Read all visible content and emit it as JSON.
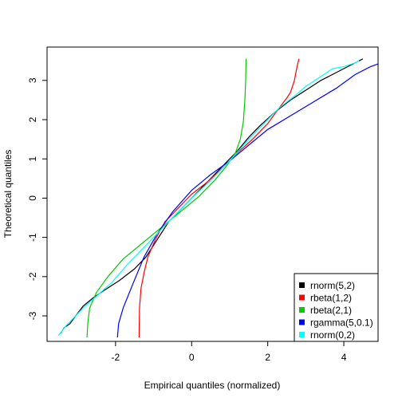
{
  "chart_data": {
    "type": "line",
    "title": "",
    "xlabel": "Empirical quantiles (normalized)",
    "ylabel": "Theoretical quantiles",
    "xlim": [
      -3.8,
      4.9
    ],
    "ylim": [
      -3.65,
      3.85
    ],
    "xticks": [
      -2,
      0,
      2,
      4
    ],
    "yticks": [
      -3,
      -2,
      -1,
      0,
      1,
      2,
      3
    ],
    "grid": false,
    "legend_position": "bottom-right",
    "series": [
      {
        "name": "rnorm(5,2)",
        "color": "#000000",
        "points": [
          [
            -3.45,
            -3.45
          ],
          [
            -3.35,
            -3.3
          ],
          [
            -3.2,
            -3.2
          ],
          [
            -3.05,
            -3.0
          ],
          [
            -2.85,
            -2.75
          ],
          [
            -2.6,
            -2.55
          ],
          [
            -2.3,
            -2.35
          ],
          [
            -1.9,
            -2.1
          ],
          [
            -1.5,
            -1.8
          ],
          [
            -1.2,
            -1.5
          ],
          [
            -0.9,
            -1.05
          ],
          [
            -0.6,
            -0.6
          ],
          [
            -0.3,
            -0.3
          ],
          [
            0.0,
            0.0
          ],
          [
            0.3,
            0.3
          ],
          [
            0.6,
            0.6
          ],
          [
            0.9,
            0.9
          ],
          [
            1.2,
            1.2
          ],
          [
            1.5,
            1.55
          ],
          [
            1.8,
            1.85
          ],
          [
            2.2,
            2.2
          ],
          [
            2.6,
            2.5
          ],
          [
            3.0,
            2.75
          ],
          [
            3.4,
            3.0
          ],
          [
            3.8,
            3.2
          ],
          [
            4.2,
            3.4
          ],
          [
            4.5,
            3.55
          ]
        ]
      },
      {
        "name": "rbeta(1,2)",
        "color": "#ff0000",
        "points": [
          [
            -1.38,
            -3.55
          ],
          [
            -1.37,
            -2.8
          ],
          [
            -1.33,
            -2.3
          ],
          [
            -1.25,
            -1.9
          ],
          [
            -1.15,
            -1.5
          ],
          [
            -0.95,
            -1.05
          ],
          [
            -0.7,
            -0.6
          ],
          [
            -0.4,
            -0.3
          ],
          [
            0.0,
            0.1
          ],
          [
            0.4,
            0.4
          ],
          [
            0.8,
            0.75
          ],
          [
            1.2,
            1.15
          ],
          [
            1.6,
            1.5
          ],
          [
            2.0,
            1.9
          ],
          [
            2.3,
            2.3
          ],
          [
            2.5,
            2.55
          ],
          [
            2.6,
            2.7
          ],
          [
            2.7,
            3.0
          ],
          [
            2.77,
            3.35
          ],
          [
            2.82,
            3.55
          ]
        ]
      },
      {
        "name": "rbeta(2,1)",
        "color": "#00cc00",
        "points": [
          [
            -2.75,
            -3.55
          ],
          [
            -2.73,
            -3.2
          ],
          [
            -2.68,
            -2.8
          ],
          [
            -2.5,
            -2.4
          ],
          [
            -2.2,
            -2.0
          ],
          [
            -1.8,
            -1.55
          ],
          [
            -1.3,
            -1.15
          ],
          [
            -0.8,
            -0.75
          ],
          [
            -0.3,
            -0.35
          ],
          [
            0.2,
            0.05
          ],
          [
            0.6,
            0.45
          ],
          [
            0.9,
            0.8
          ],
          [
            1.15,
            1.15
          ],
          [
            1.28,
            1.5
          ],
          [
            1.36,
            1.95
          ],
          [
            1.4,
            2.5
          ],
          [
            1.42,
            3.0
          ],
          [
            1.43,
            3.55
          ]
        ]
      },
      {
        "name": "rgamma(5,0.1)",
        "color": "#0000ff",
        "points": [
          [
            -1.95,
            -3.55
          ],
          [
            -1.92,
            -3.2
          ],
          [
            -1.8,
            -2.8
          ],
          [
            -1.55,
            -2.2
          ],
          [
            -1.25,
            -1.5
          ],
          [
            -0.9,
            -0.9
          ],
          [
            -0.5,
            -0.35
          ],
          [
            0.0,
            0.2
          ],
          [
            0.5,
            0.6
          ],
          [
            1.0,
            0.95
          ],
          [
            1.5,
            1.35
          ],
          [
            2.0,
            1.75
          ],
          [
            2.6,
            2.1
          ],
          [
            3.2,
            2.45
          ],
          [
            3.8,
            2.8
          ],
          [
            4.3,
            3.15
          ],
          [
            4.7,
            3.35
          ],
          [
            4.9,
            3.42
          ]
        ]
      },
      {
        "name": "rnorm(0,2)",
        "color": "#00ffff",
        "points": [
          [
            -3.5,
            -3.5
          ],
          [
            -3.3,
            -3.25
          ],
          [
            -3.1,
            -3.05
          ],
          [
            -2.8,
            -2.75
          ],
          [
            -2.5,
            -2.5
          ],
          [
            -2.1,
            -2.15
          ],
          [
            -1.7,
            -1.7
          ],
          [
            -1.3,
            -1.3
          ],
          [
            -0.9,
            -0.9
          ],
          [
            -0.5,
            -0.5
          ],
          [
            0.0,
            0.0
          ],
          [
            0.5,
            0.45
          ],
          [
            1.0,
            0.95
          ],
          [
            1.5,
            1.5
          ],
          [
            1.9,
            1.9
          ],
          [
            2.3,
            2.3
          ],
          [
            2.7,
            2.6
          ],
          [
            3.0,
            2.85
          ],
          [
            3.4,
            3.1
          ],
          [
            3.7,
            3.3
          ],
          [
            4.0,
            3.35
          ],
          [
            4.3,
            3.45
          ],
          [
            4.4,
            3.5
          ]
        ]
      }
    ]
  }
}
